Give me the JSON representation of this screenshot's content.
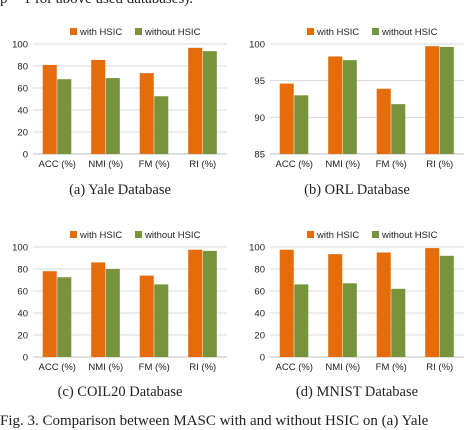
{
  "top_text": "p = 1 for above used databases).",
  "bottom_text": "Fig. 3.  Comparison between MASC with and without HSIC on (a) Yale",
  "colors": {
    "with": "#E46C0A",
    "without": "#77933C",
    "grid": "#D9D9D9",
    "axis": "#BFBFBF"
  },
  "chart_data": [
    {
      "type": "bar",
      "caption": "(a)  Yale Database",
      "categories": [
        "ACC (%)",
        "NMI (%)",
        "FM (%)",
        "RI (%)"
      ],
      "series": [
        {
          "name": "with HSIC",
          "values": [
            81,
            85.5,
            73.5,
            96.5
          ]
        },
        {
          "name": "without HSIC",
          "values": [
            68,
            69,
            52.5,
            93.5
          ]
        }
      ],
      "ylim": [
        0,
        100
      ],
      "yticks": [
        "0",
        "20",
        "40",
        "60",
        "80",
        "100"
      ],
      "grid": true,
      "legend": "top"
    },
    {
      "type": "bar",
      "caption": "(b)  ORL Database",
      "categories": [
        "ACC (%)",
        "NMI (%)",
        "FM (%)",
        "RI (%)"
      ],
      "series": [
        {
          "name": "with HSIC",
          "values": [
            94.6,
            98.3,
            93.9,
            99.7
          ]
        },
        {
          "name": "without HSIC",
          "values": [
            93.0,
            97.8,
            91.8,
            99.6
          ]
        }
      ],
      "ylim": [
        85,
        100
      ],
      "yticks": [
        "85",
        "90",
        "95",
        "100"
      ],
      "grid": true,
      "legend": "top"
    },
    {
      "type": "bar",
      "caption": "(c)  COIL20 Database",
      "categories": [
        "ACC (%)",
        "NMI (%)",
        "FM (%)",
        "RI (%)"
      ],
      "series": [
        {
          "name": "with HSIC",
          "values": [
            78,
            86,
            74,
            97.5
          ]
        },
        {
          "name": "without HSIC",
          "values": [
            72.5,
            80,
            66,
            96.5
          ]
        }
      ],
      "ylim": [
        0,
        100
      ],
      "yticks": [
        "0",
        "20",
        "40",
        "60",
        "80",
        "100"
      ],
      "grid": true,
      "legend": "top"
    },
    {
      "type": "bar",
      "caption": "(d)  MNIST Database",
      "categories": [
        "ACC (%)",
        "NMI (%)",
        "FM (%)",
        "RI (%)"
      ],
      "series": [
        {
          "name": "with HSIC",
          "values": [
            97.5,
            93.5,
            95,
            99
          ]
        },
        {
          "name": "without HSIC",
          "values": [
            66,
            67,
            62,
            92
          ]
        }
      ],
      "ylim": [
        0,
        100
      ],
      "yticks": [
        "0",
        "20",
        "40",
        "60",
        "80",
        "100"
      ],
      "grid": true,
      "legend": "top"
    }
  ]
}
